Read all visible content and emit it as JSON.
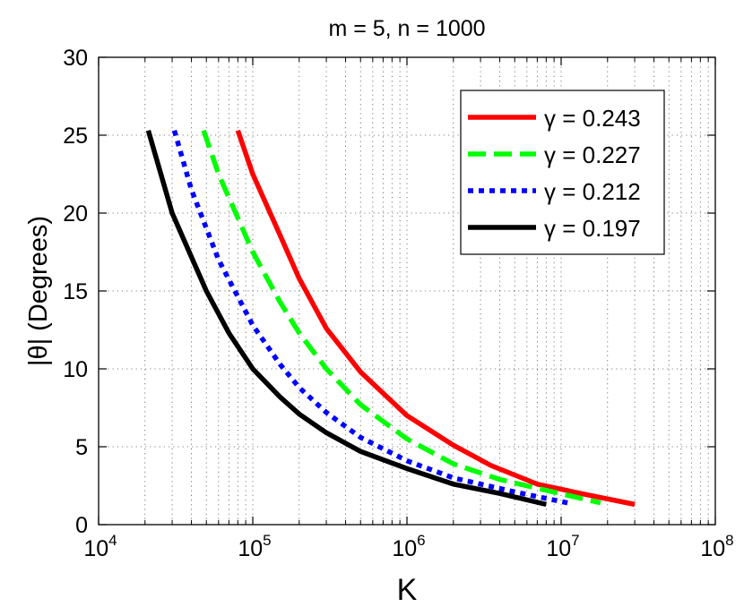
{
  "chart_data": {
    "type": "line",
    "title": "m = 5, n = 1000",
    "xlabel": "K",
    "ylabel": "|θ| (Degrees)",
    "xscale": "log",
    "xlim": [
      10000,
      100000000
    ],
    "ylim": [
      0,
      30
    ],
    "x_ticks": [
      {
        "value": 10000,
        "base": "10",
        "exp": "4"
      },
      {
        "value": 100000,
        "base": "10",
        "exp": "5"
      },
      {
        "value": 1000000,
        "base": "10",
        "exp": "6"
      },
      {
        "value": 10000000,
        "base": "10",
        "exp": "7"
      },
      {
        "value": 100000000,
        "base": "10",
        "exp": "8"
      }
    ],
    "y_ticks": [
      0,
      5,
      10,
      15,
      20,
      25,
      30
    ],
    "grid": true,
    "legend_position": "top-right",
    "series": [
      {
        "name": "γ = 0.243",
        "color": "#ff0000",
        "style": "solid",
        "points": [
          [
            80000,
            25.3
          ],
          [
            100000,
            22.5
          ],
          [
            150000,
            18.6
          ],
          [
            200000,
            15.8
          ],
          [
            300000,
            12.6
          ],
          [
            500000,
            9.8
          ],
          [
            1000000,
            7.0
          ],
          [
            2000000,
            5.1
          ],
          [
            3500000,
            3.8
          ],
          [
            7000000,
            2.6
          ],
          [
            15000000,
            1.9
          ],
          [
            30000000,
            1.3
          ]
        ]
      },
      {
        "name": "γ = 0.227",
        "color": "#00ff00",
        "style": "dashed",
        "points": [
          [
            48000,
            25.3
          ],
          [
            60000,
            22.5
          ],
          [
            100000,
            17.5
          ],
          [
            150000,
            14.3
          ],
          [
            200000,
            12.3
          ],
          [
            300000,
            10.0
          ],
          [
            500000,
            7.7
          ],
          [
            1000000,
            5.5
          ],
          [
            2000000,
            3.9
          ],
          [
            4000000,
            2.9
          ],
          [
            8000000,
            2.2
          ],
          [
            18000000,
            1.4
          ]
        ]
      },
      {
        "name": "γ = 0.212",
        "color": "#0000ff",
        "style": "dotted",
        "points": [
          [
            31000,
            25.3
          ],
          [
            40000,
            21.5
          ],
          [
            60000,
            17.0
          ],
          [
            100000,
            12.8
          ],
          [
            150000,
            10.3
          ],
          [
            200000,
            8.8
          ],
          [
            300000,
            7.2
          ],
          [
            500000,
            5.6
          ],
          [
            1000000,
            4.1
          ],
          [
            2000000,
            3.0
          ],
          [
            5000000,
            2.1
          ],
          [
            11000000,
            1.4
          ]
        ]
      },
      {
        "name": "γ = 0.197",
        "color": "#000000",
        "style": "solid",
        "points": [
          [
            21000,
            25.3
          ],
          [
            30000,
            20.0
          ],
          [
            50000,
            15.0
          ],
          [
            70000,
            12.3
          ],
          [
            100000,
            10.0
          ],
          [
            150000,
            8.2
          ],
          [
            200000,
            7.1
          ],
          [
            300000,
            5.9
          ],
          [
            500000,
            4.7
          ],
          [
            1000000,
            3.6
          ],
          [
            2000000,
            2.6
          ],
          [
            4000000,
            2.0
          ],
          [
            8000000,
            1.3
          ]
        ]
      }
    ]
  }
}
